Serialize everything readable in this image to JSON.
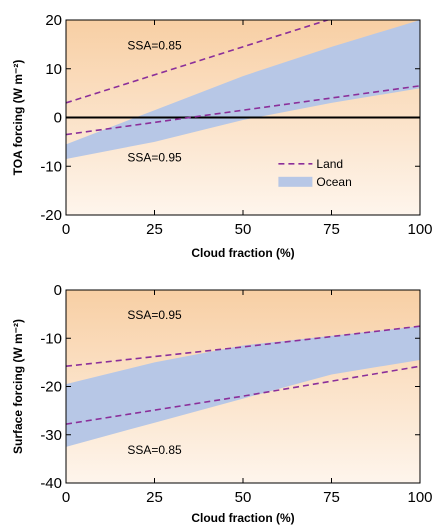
{
  "colors": {
    "background_top": "#f8cfa4",
    "background_bottom": "#fef5ec",
    "ocean_band": "#b7c7e6",
    "land_line": "#8b2f9a",
    "zero_line": "#000000"
  },
  "chart_data": [
    {
      "type": "area",
      "ylabel": "TOA forcing (W m⁻²)",
      "xlabel": "Cloud fraction (%)",
      "xlim": [
        0,
        100
      ],
      "ylim": [
        -20,
        20
      ],
      "xticks": [
        0,
        25,
        50,
        75,
        100
      ],
      "yticks": [
        -20,
        -10,
        0,
        10,
        20
      ],
      "zero_line": true,
      "grid": false,
      "series": [
        {
          "name": "Ocean",
          "kind": "band",
          "x": [
            0,
            25,
            50,
            75,
            100
          ],
          "lower": [
            -8.5,
            -5.0,
            -0.5,
            3.0,
            6.0
          ],
          "upper": [
            -5.5,
            1.5,
            8.5,
            14.5,
            20.0
          ]
        },
        {
          "name": "Land",
          "kind": "dashed-line",
          "x": [
            0,
            100
          ],
          "y": [
            3.0,
            26.0
          ]
        },
        {
          "name": "Land",
          "kind": "dashed-line",
          "x": [
            0,
            100
          ],
          "y": [
            -3.5,
            6.5
          ]
        }
      ],
      "annotations": [
        {
          "text": "SSA=0.85",
          "x": 25,
          "y": 14
        },
        {
          "text": "SSA=0.95",
          "x": 25,
          "y": -9
        }
      ],
      "legend": {
        "placement": "bottom-right",
        "items": [
          {
            "label": "Land",
            "symbol": "dashed-line"
          },
          {
            "label": "Ocean",
            "symbol": "band"
          }
        ]
      }
    },
    {
      "type": "area",
      "ylabel": "Surface forcing (W m⁻²)",
      "xlabel": "Cloud fraction (%)",
      "xlim": [
        0,
        100
      ],
      "ylim": [
        -40,
        0
      ],
      "xticks": [
        0,
        25,
        50,
        75,
        100
      ],
      "yticks": [
        -40,
        -30,
        -20,
        -10,
        0
      ],
      "zero_line": false,
      "grid": false,
      "series": [
        {
          "name": "Ocean",
          "kind": "band",
          "x": [
            0,
            25,
            50,
            75,
            100
          ],
          "lower": [
            -32.5,
            -27.5,
            -22.5,
            -17.5,
            -14.5
          ],
          "upper": [
            -19.5,
            -15.0,
            -11.5,
            -9.5,
            -7.5
          ]
        },
        {
          "name": "Land",
          "kind": "dashed-line",
          "x": [
            0,
            50,
            100
          ],
          "y": [
            -15.8,
            -11.8,
            -7.5
          ]
        },
        {
          "name": "Land",
          "kind": "dashed-line",
          "x": [
            0,
            50,
            100
          ],
          "y": [
            -27.8,
            -22.0,
            -15.8
          ]
        }
      ],
      "annotations": [
        {
          "text": "SSA=0.95",
          "x": 25,
          "y": -6
        },
        {
          "text": "SSA=0.85",
          "x": 25,
          "y": -34
        }
      ]
    }
  ]
}
